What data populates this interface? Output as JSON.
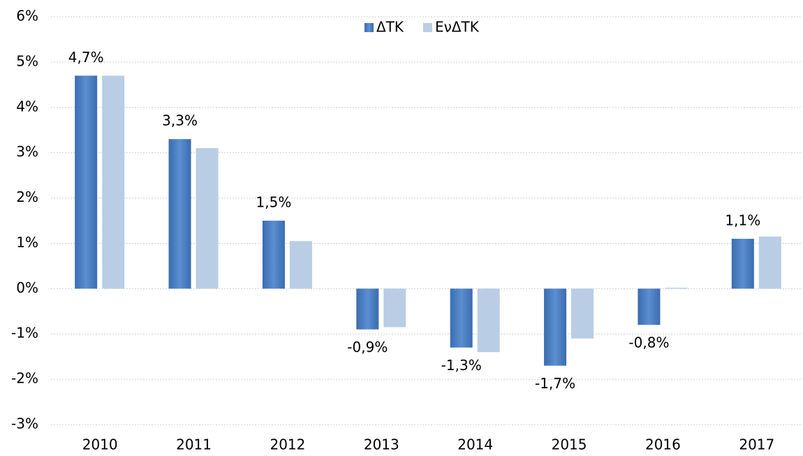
{
  "chart_data": {
    "type": "bar",
    "categories": [
      "2010",
      "2011",
      "2012",
      "2013",
      "2014",
      "2015",
      "2016",
      "2017"
    ],
    "series": [
      {
        "name": "ΔΤΚ",
        "color": "#4a7ebf",
        "values": [
          4.7,
          3.3,
          1.5,
          -0.9,
          -1.3,
          -1.7,
          -0.8,
          1.1
        ],
        "value_labels": [
          "4,7%",
          "3,3%",
          "1,5%",
          "-0,9%",
          "-1,3%",
          "-1,7%",
          "-0,8%",
          "1,1%"
        ]
      },
      {
        "name": "ΕνΔΤΚ",
        "color": "#b9cde5",
        "values": [
          4.7,
          3.1,
          1.05,
          -0.85,
          -1.4,
          -1.1,
          0.02,
          1.15
        ]
      }
    ],
    "ylim": [
      -3,
      6
    ],
    "yticks": [
      {
        "value": -3,
        "label": "-3%"
      },
      {
        "value": -2,
        "label": "-2%"
      },
      {
        "value": -1,
        "label": "-1%"
      },
      {
        "value": 0,
        "label": "0%"
      },
      {
        "value": 1,
        "label": "1%"
      },
      {
        "value": 2,
        "label": "2%"
      },
      {
        "value": 3,
        "label": "3%"
      },
      {
        "value": 4,
        "label": "4%"
      },
      {
        "value": 5,
        "label": "5%"
      },
      {
        "value": 6,
        "label": "6%"
      }
    ],
    "grid": true,
    "legend": "top"
  }
}
